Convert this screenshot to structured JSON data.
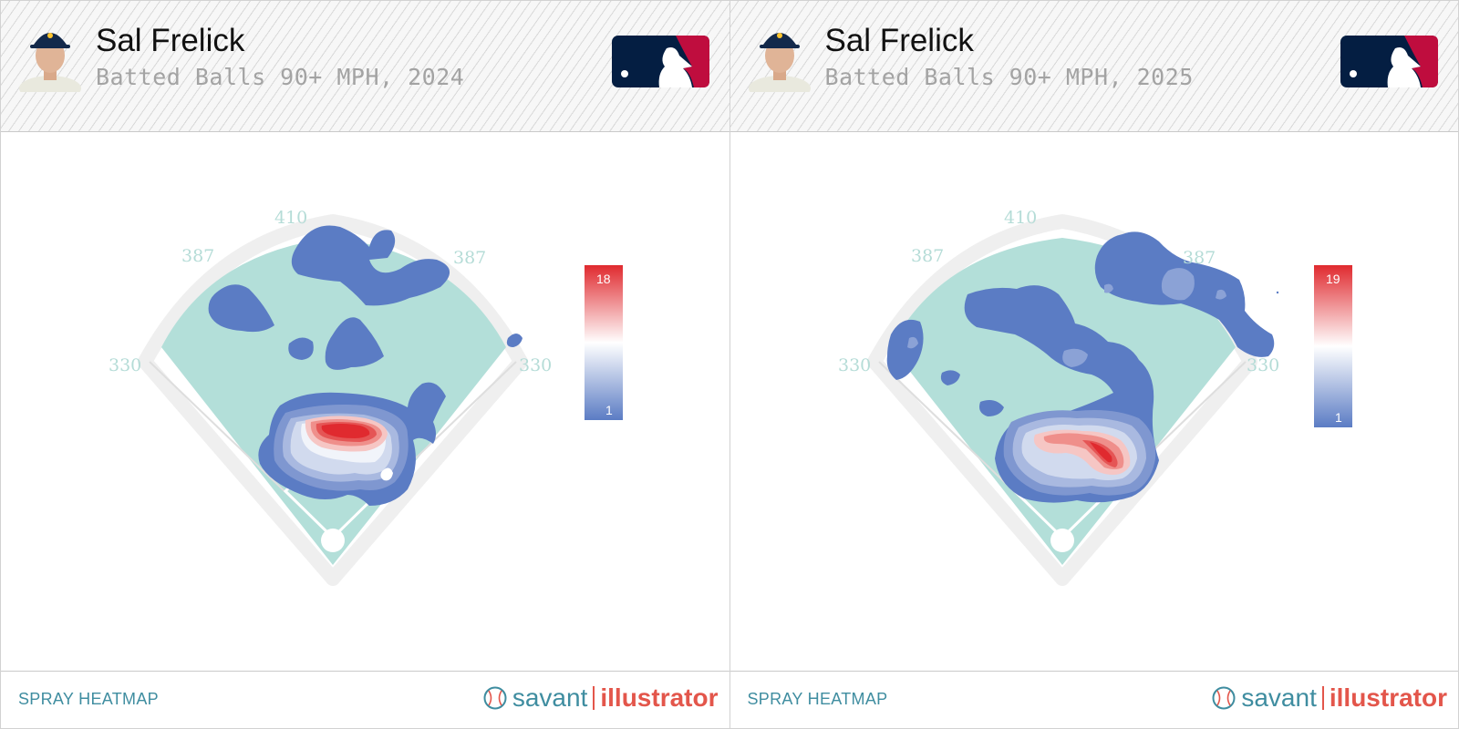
{
  "panels": [
    {
      "player_name": "Sal Frelick",
      "subtitle": "Batted Balls 90+ MPH, 2024",
      "footer_label": "SPRAY HEATMAP",
      "brand": {
        "left": "savant",
        "right": "illustrator"
      },
      "legend": {
        "max": "18",
        "min": "1"
      }
    },
    {
      "player_name": "Sal Frelick",
      "subtitle": "Batted Balls 90+ MPH, 2025",
      "footer_label": "SPRAY HEATMAP",
      "brand": {
        "left": "savant",
        "right": "illustrator"
      },
      "legend": {
        "max": "19",
        "min": "1"
      }
    }
  ],
  "chart_data": [
    {
      "type": "heatmap",
      "title": "Batted Balls 90+ MPH, 2024",
      "fence_distances": {
        "left_line": "330",
        "left_center": "387",
        "center": "410",
        "right_center": "387",
        "right_line": "330"
      },
      "scale": {
        "min": 1,
        "max": 18
      },
      "colors": {
        "low": "#5b7cc4",
        "mid": "#ffffff",
        "high": "#e02a2f",
        "field": "#b3dfd9"
      }
    },
    {
      "type": "heatmap",
      "title": "Batted Balls 90+ MPH, 2025",
      "fence_distances": {
        "left_line": "330",
        "left_center": "387",
        "center": "410",
        "right_center": "387",
        "right_line": "330"
      },
      "scale": {
        "min": 1,
        "max": 19
      },
      "colors": {
        "low": "#5b7cc4",
        "mid": "#ffffff",
        "high": "#e02a2f",
        "field": "#b3dfd9"
      }
    }
  ],
  "icons": [
    "player-headshot",
    "mlb-logo",
    "baseball-icon"
  ]
}
